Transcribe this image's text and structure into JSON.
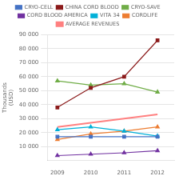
{
  "chart_data": {
    "type": "line",
    "x": [
      2009,
      2010,
      2011,
      2012
    ],
    "xlim": [
      2008.7,
      2012.5
    ],
    "xticks": [
      2009,
      2010,
      2011,
      2012
    ],
    "ylim": [
      0,
      90000
    ],
    "yticks": [
      {
        "value": 10000,
        "label": "10 000"
      },
      {
        "value": 20000,
        "label": "20 000"
      },
      {
        "value": 30000,
        "label": "30 000"
      },
      {
        "value": 40000,
        "label": "40 000"
      },
      {
        "value": 50000,
        "label": "50 000"
      },
      {
        "value": 60000,
        "label": "60 000"
      },
      {
        "value": 70000,
        "label": "70 000"
      },
      {
        "value": 80000,
        "label": "80 000"
      },
      {
        "value": 90000,
        "label": "90 000"
      }
    ],
    "y_label": "Thousands\n(USD)",
    "grid": "y",
    "legend": "top",
    "series": [
      {
        "name": "CRYO-CELL",
        "color": "#4472C4",
        "marker": "square",
        "line_style": "solid",
        "values": [
          17000,
          17000,
          17000,
          17000
        ]
      },
      {
        "name": "CHINA CORD BLOOD",
        "color": "#8B1A1A",
        "marker": "square",
        "line_style": "solid",
        "values": [
          38000,
          52000,
          60000,
          86000
        ]
      },
      {
        "name": "CRYO-SAVE",
        "color": "#70AD47",
        "marker": "triangle",
        "line_style": "solid",
        "values": [
          57000,
          54000,
          55000,
          49000
        ]
      },
      {
        "name": "CORD BLOOD AMERICA",
        "color": "#7030A0",
        "marker": "triangle",
        "line_style": "solid",
        "values": [
          3500,
          4500,
          5500,
          7000
        ]
      },
      {
        "name": "VITA 34",
        "color": "#00B0D8",
        "marker": "triangle",
        "line_style": "solid",
        "values": [
          22000,
          24000,
          21000,
          17500
        ]
      },
      {
        "name": "CORDLIFE",
        "color": "#ED7D31",
        "marker": "triangle",
        "line_style": "solid",
        "values": [
          15000,
          19000,
          21000,
          24000
        ]
      },
      {
        "name": "AVERAGE REVENUES",
        "color": "#FF8080",
        "marker": "none",
        "line_style": "solid",
        "values": [
          24000,
          27000,
          30000,
          33000
        ]
      }
    ]
  }
}
